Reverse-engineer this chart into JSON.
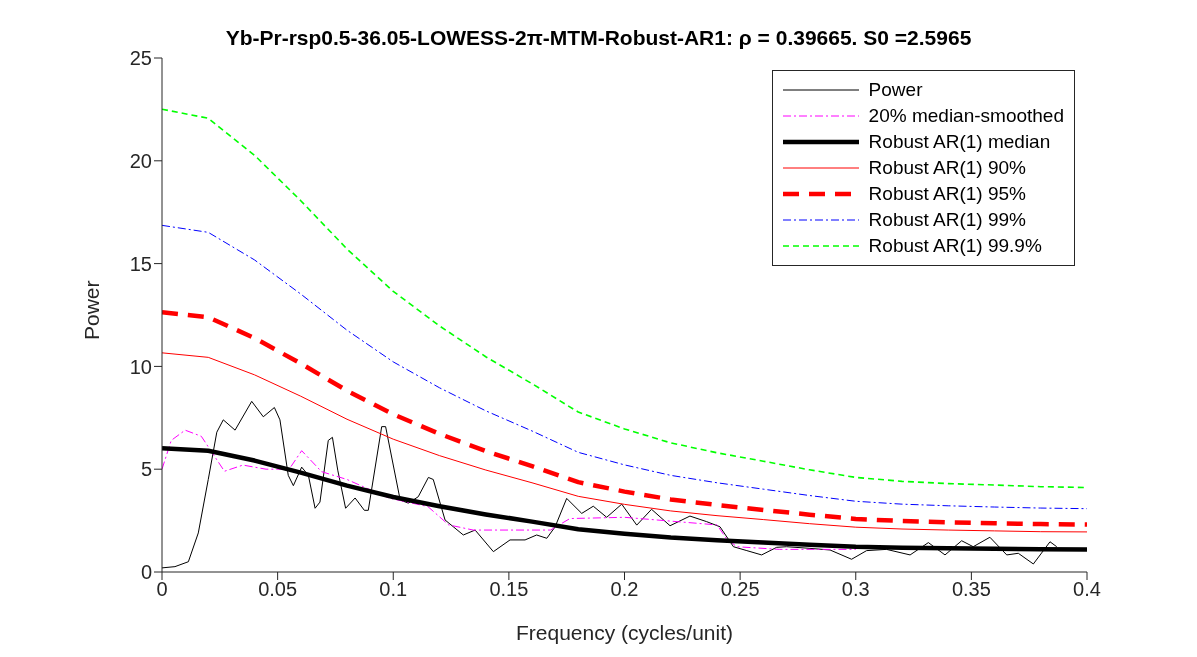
{
  "chart_data": {
    "type": "line",
    "title": "Yb-Pr-rsp0.5-36.05-LOWESS-2π-MTM-Robust-AR1: ρ = 0.39665. S0 =2.5965",
    "xlabel": "Frequency (cycles/unit)",
    "ylabel": "Power",
    "xlim": [
      0,
      0.4
    ],
    "ylim": [
      0,
      25
    ],
    "xticks": [
      0,
      0.05,
      0.1,
      0.15,
      0.2,
      0.25,
      0.3,
      0.35,
      0.4
    ],
    "yticks": [
      0,
      5,
      10,
      15,
      20,
      25
    ],
    "grid": false,
    "legend": "top right",
    "marker": "none",
    "series": [
      {
        "name": "Power",
        "color": "#000000",
        "line_style": "solid",
        "x": [
          0,
          0.0056,
          0.0114,
          0.0157,
          0.02,
          0.0237,
          0.0265,
          0.0316,
          0.0388,
          0.0438,
          0.0486,
          0.051,
          0.0546,
          0.0568,
          0.0604,
          0.0633,
          0.0662,
          0.0683,
          0.0719,
          0.0737,
          0.076,
          0.0794,
          0.0835,
          0.0875,
          0.0892,
          0.095,
          0.0967,
          0.103,
          0.1065,
          0.1108,
          0.1152,
          0.1173,
          0.1224,
          0.1303,
          0.1354,
          0.1433,
          0.1505,
          0.157,
          0.162,
          0.1664,
          0.17,
          0.175,
          0.1815,
          0.1865,
          0.1923,
          0.1988,
          0.2053,
          0.2117,
          0.2197,
          0.2283,
          0.2355,
          0.2413,
          0.2471,
          0.2529,
          0.2593,
          0.2658,
          0.2701,
          0.2802,
          0.2889,
          0.2982,
          0.3047,
          0.3133,
          0.3235,
          0.3314,
          0.3386,
          0.3458,
          0.3508,
          0.358,
          0.3653,
          0.3703,
          0.3768,
          0.384,
          0.3869
        ],
        "values": [
          0.2,
          0.26,
          0.5,
          1.9,
          4.5,
          6.8,
          7.4,
          6.9,
          8.3,
          7.55,
          8.0,
          7.4,
          4.7,
          4.2,
          5.1,
          4.7,
          3.1,
          3.4,
          6.4,
          6.55,
          4.95,
          3.1,
          3.6,
          3.0,
          3.0,
          7.07,
          7.07,
          3.5,
          3.35,
          3.66,
          4.6,
          4.5,
          2.53,
          1.8,
          2.04,
          0.99,
          1.56,
          1.56,
          1.8,
          1.64,
          2.2,
          3.58,
          2.85,
          3.2,
          2.66,
          3.3,
          2.28,
          3.05,
          2.25,
          2.72,
          2.45,
          2.2,
          1.23,
          1.04,
          0.83,
          1.2,
          1.23,
          1.15,
          1.07,
          0.62,
          1.04,
          1.1,
          0.83,
          1.43,
          0.83,
          1.52,
          1.23,
          1.69,
          0.83,
          0.91,
          0.39,
          1.47,
          1.23
        ]
      },
      {
        "name": "20% median-smoothed",
        "color": "#ff00ff",
        "line_style": "dashdot",
        "x": [
          0,
          0.004,
          0.01,
          0.017,
          0.027,
          0.035,
          0.045,
          0.055,
          0.0604,
          0.069,
          0.08,
          0.098,
          0.115,
          0.124,
          0.1346,
          0.168,
          0.1764,
          0.2,
          0.24,
          0.244,
          0.2485,
          0.267,
          0.3
        ],
        "values": [
          5.0,
          6.4,
          6.9,
          6.6,
          4.9,
          5.2,
          5.0,
          5.0,
          5.9,
          4.88,
          4.5,
          3.6,
          3.18,
          2.29,
          2.04,
          2.04,
          2.6,
          2.66,
          2.29,
          1.64,
          1.23,
          1.1,
          1.1
        ]
      },
      {
        "name": "Robust AR(1) median",
        "color": "#000000",
        "line_style": "solid",
        "x": [
          0,
          0.02,
          0.04,
          0.06,
          0.08,
          0.1,
          0.12,
          0.14,
          0.16,
          0.18,
          0.2,
          0.22,
          0.24,
          0.26,
          0.28,
          0.3,
          0.32,
          0.34,
          0.36,
          0.38,
          0.4
        ],
        "values": [
          6.02,
          5.9,
          5.42,
          4.83,
          4.2,
          3.65,
          3.2,
          2.8,
          2.45,
          2.08,
          1.86,
          1.68,
          1.55,
          1.44,
          1.33,
          1.23,
          1.18,
          1.15,
          1.13,
          1.11,
          1.1
        ]
      },
      {
        "name": "Robust AR(1) 90%",
        "color": "#ff0000",
        "line_style": "solid",
        "x": [
          0,
          0.02,
          0.04,
          0.06,
          0.08,
          0.1,
          0.12,
          0.14,
          0.16,
          0.18,
          0.2,
          0.22,
          0.24,
          0.26,
          0.28,
          0.3,
          0.32,
          0.34,
          0.36,
          0.38,
          0.4
        ],
        "values": [
          10.66,
          10.44,
          9.59,
          8.55,
          7.43,
          6.46,
          5.66,
          4.96,
          4.34,
          3.68,
          3.29,
          2.97,
          2.74,
          2.55,
          2.35,
          2.18,
          2.09,
          2.04,
          2.0,
          1.96,
          1.95
        ]
      },
      {
        "name": "Robust AR(1) 95%",
        "color": "#ff0000",
        "line_style": "dashed",
        "x": [
          0,
          0.02,
          0.04,
          0.06,
          0.08,
          0.1,
          0.12,
          0.14,
          0.16,
          0.18,
          0.2,
          0.22,
          0.24,
          0.26,
          0.28,
          0.3,
          0.32,
          0.34,
          0.36,
          0.38,
          0.4
        ],
        "values": [
          12.64,
          12.39,
          11.38,
          10.14,
          8.82,
          7.67,
          6.72,
          5.88,
          5.15,
          4.37,
          3.91,
          3.53,
          3.26,
          3.02,
          2.79,
          2.58,
          2.48,
          2.42,
          2.37,
          2.33,
          2.31
        ]
      },
      {
        "name": "Robust AR(1) 99%",
        "color": "#0000ff",
        "line_style": "dashdot",
        "x": [
          0,
          0.02,
          0.04,
          0.06,
          0.08,
          0.1,
          0.12,
          0.14,
          0.16,
          0.18,
          0.2,
          0.22,
          0.24,
          0.26,
          0.28,
          0.3,
          0.32,
          0.34,
          0.36,
          0.38,
          0.4
        ],
        "values": [
          16.86,
          16.52,
          15.18,
          13.52,
          11.76,
          10.22,
          8.96,
          7.84,
          6.86,
          5.82,
          5.21,
          4.7,
          4.34,
          4.03,
          3.72,
          3.44,
          3.3,
          3.22,
          3.16,
          3.11,
          3.08
        ]
      },
      {
        "name": "Robust AR(1) 99.9%",
        "color": "#00ff00",
        "line_style": "dashed",
        "x": [
          0,
          0.02,
          0.04,
          0.06,
          0.08,
          0.1,
          0.12,
          0.14,
          0.16,
          0.18,
          0.2,
          0.22,
          0.24,
          0.26,
          0.28,
          0.3,
          0.32,
          0.34,
          0.36,
          0.38,
          0.4
        ],
        "values": [
          22.51,
          22.07,
          20.27,
          18.06,
          15.71,
          13.65,
          11.97,
          10.47,
          9.16,
          7.78,
          6.96,
          6.28,
          5.8,
          5.39,
          4.97,
          4.6,
          4.41,
          4.3,
          4.23,
          4.15,
          4.11
        ]
      }
    ]
  }
}
